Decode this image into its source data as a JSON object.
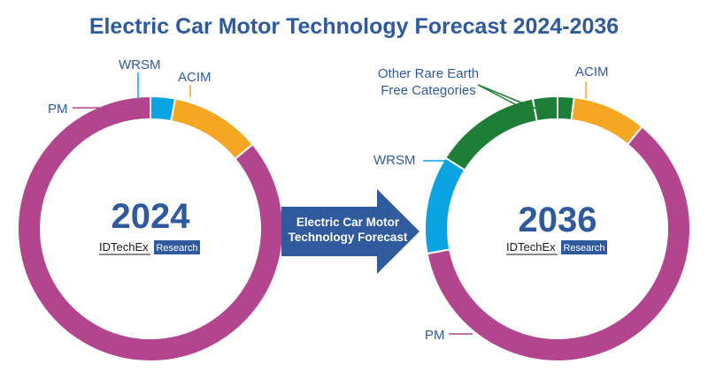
{
  "title": "Electric Car Motor Technology Forecast 2024-2036",
  "arrow_label": [
    "Electric Car Motor",
    "Technology Forecast"
  ],
  "brand": {
    "name": "IDTechEx",
    "badge": "Research"
  },
  "colors": {
    "PM": "#b3458f",
    "ACIM": "#f5a623",
    "WRSM": "#0aa4e2",
    "Other Rare Earth Free Categories": "#1e7d36",
    "title": "#2f5a9e",
    "arrow": "#2f5a9e"
  },
  "chart_data": [
    {
      "type": "pie",
      "donut": true,
      "center_label": "2024",
      "slices": [
        {
          "label": "WRSM",
          "value": 3
        },
        {
          "label": "ACIM",
          "value": 11
        },
        {
          "label": "PM",
          "value": 86
        }
      ]
    },
    {
      "type": "pie",
      "donut": true,
      "center_label": "2036",
      "slices": [
        {
          "label": "Other Rare Earth Free Categories",
          "value": 2
        },
        {
          "label": "ACIM",
          "value": 9
        },
        {
          "label": "PM",
          "value": 61
        },
        {
          "label": "WRSM",
          "value": 12
        },
        {
          "label": "Other Rare Earth Free Categories",
          "value": 13
        },
        {
          "label": "Other Rare Earth Free Categories",
          "value": 3
        }
      ],
      "note": "slices listed clockwise from top; the two small green slices share the label"
    }
  ]
}
